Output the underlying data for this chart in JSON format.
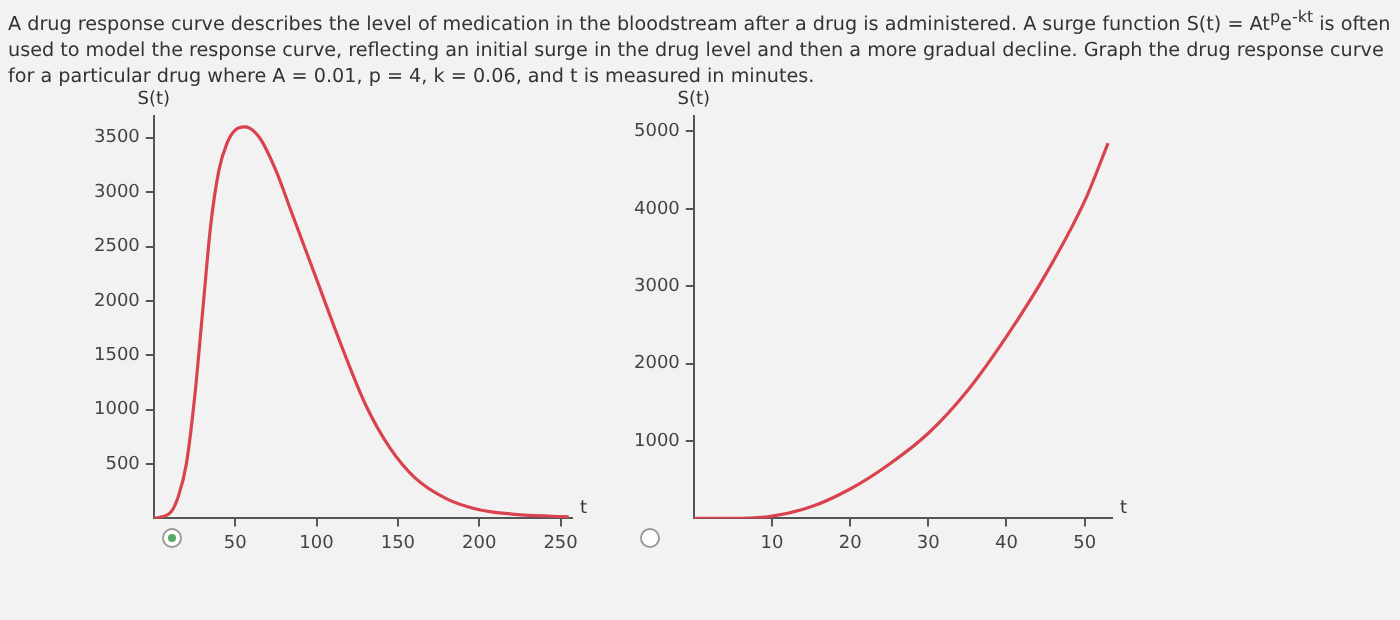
{
  "chart_data": [
    {
      "type": "other",
      "title": "A drug response curve describes the level of medication in the bloodstream after a drug is administered. A surge function S(t) = At$^{p}$e$^{-kt}$ is often used to model the response curve, reflecting an initial surge in the drug level and then a more gradual decline. Graph the drug response curve for a particular drug where A = 0.01, p = 4, k = 0.06, and t is measured in minutes."
    },
    {
      "type": "line",
      "xlabel": "t",
      "ylabel": "S(t)",
      "x": [
        0,
        10,
        15,
        20,
        25,
        30,
        35,
        40,
        45,
        50,
        56,
        65,
        75,
        85,
        100,
        115,
        130,
        145,
        160,
        180,
        200,
        220,
        245,
        255
      ],
      "series": [
        {
          "color": "#d9434e",
          "values": [
            0,
            50,
            200,
            500,
            1100,
            1900,
            2700,
            3200,
            3450,
            3570,
            3600,
            3500,
            3200,
            2800,
            2200,
            1600,
            1050,
            650,
            380,
            180,
            80,
            40,
            20,
            15
          ]
        }
      ],
      "xlim": [
        0,
        257
      ],
      "xticks": [
        50,
        100,
        150,
        200,
        250
      ],
      "ylim": [
        0,
        3700
      ],
      "yticks": [
        500,
        1000,
        1500,
        2000,
        2500,
        3000,
        3500
      ],
      "grid": false,
      "legend": false,
      "marker": "none"
    },
    {
      "type": "line",
      "xlabel": "t",
      "ylabel": "S(t)",
      "x": [
        0,
        5,
        10,
        15,
        20,
        25,
        30,
        35,
        40,
        45,
        50,
        53
      ],
      "series": [
        {
          "color": "#d9434e",
          "values": [
            0,
            0,
            30,
            150,
            380,
            700,
            1100,
            1650,
            2350,
            3150,
            4100,
            4850
          ]
        }
      ],
      "xlim": [
        0,
        53.5
      ],
      "xticks": [
        10,
        20,
        30,
        40,
        50
      ],
      "ylim": [
        0,
        5200
      ],
      "yticks": [
        1000,
        2000,
        3000,
        4000,
        5000
      ],
      "grid": false,
      "legend": false,
      "marker": "none"
    }
  ]
}
